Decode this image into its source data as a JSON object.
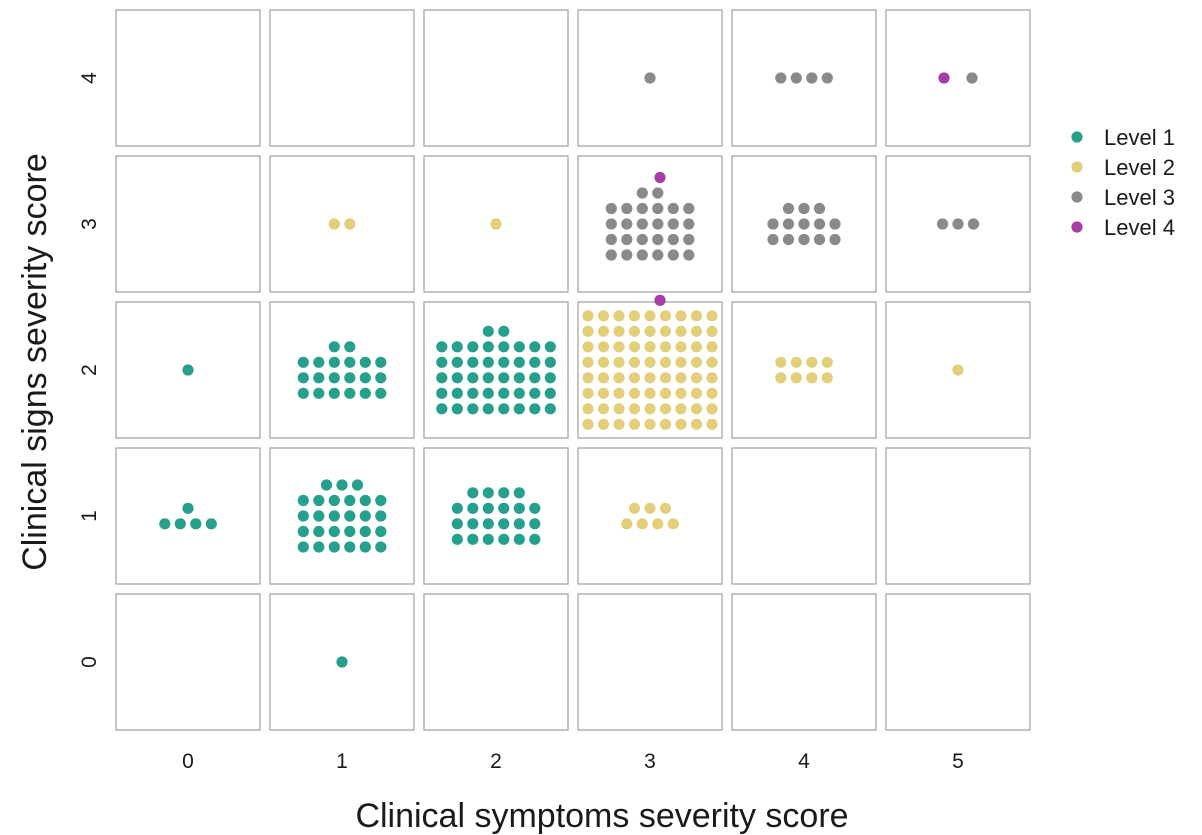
{
  "chart_data": {
    "type": "scatter",
    "title": "",
    "xlabel": "Clinical symptoms severity score",
    "ylabel": "Clinical signs severity score",
    "x_ticks": [
      "0",
      "1",
      "2",
      "3",
      "4",
      "5"
    ],
    "y_ticks": [
      "0",
      "1",
      "2",
      "3",
      "4"
    ],
    "legend_position": "right",
    "series": [
      {
        "name": "Level 1",
        "color": "#26a08c"
      },
      {
        "name": "Level 2",
        "color": "#e3cf7a"
      },
      {
        "name": "Level 3",
        "color": "#8a8a8a"
      },
      {
        "name": "Level 4",
        "color": "#a63ea6"
      }
    ],
    "cells": [
      {
        "x": 0,
        "y": 1,
        "counts": {
          "Level 1": 5
        }
      },
      {
        "x": 0,
        "y": 2,
        "counts": {
          "Level 1": 1
        }
      },
      {
        "x": 1,
        "y": 0,
        "counts": {
          "Level 1": 1
        }
      },
      {
        "x": 1,
        "y": 1,
        "counts": {
          "Level 1": 27
        }
      },
      {
        "x": 1,
        "y": 2,
        "counts": {
          "Level 1": 20
        }
      },
      {
        "x": 1,
        "y": 3,
        "counts": {
          "Level 2": 2
        }
      },
      {
        "x": 2,
        "y": 1,
        "counts": {
          "Level 1": 22
        }
      },
      {
        "x": 2,
        "y": 2,
        "counts": {
          "Level 1": 42
        }
      },
      {
        "x": 2,
        "y": 3,
        "counts": {
          "Level 2": 1
        }
      },
      {
        "x": 3,
        "y": 1,
        "counts": {
          "Level 2": 7
        }
      },
      {
        "x": 3,
        "y": 2,
        "counts": {
          "Level 2": 72,
          "Level 4": 1
        }
      },
      {
        "x": 3,
        "y": 3,
        "counts": {
          "Level 3": 26,
          "Level 4": 1
        }
      },
      {
        "x": 3,
        "y": 4,
        "counts": {
          "Level 3": 1
        }
      },
      {
        "x": 4,
        "y": 2,
        "counts": {
          "Level 2": 8
        }
      },
      {
        "x": 4,
        "y": 3,
        "counts": {
          "Level 3": 13
        }
      },
      {
        "x": 4,
        "y": 4,
        "counts": {
          "Level 3": 4
        }
      },
      {
        "x": 5,
        "y": 2,
        "counts": {
          "Level 2": 1
        }
      },
      {
        "x": 5,
        "y": 3,
        "counts": {
          "Level 3": 3
        }
      },
      {
        "x": 5,
        "y": 4,
        "counts": {
          "Level 3": 1,
          "Level 4": 1
        }
      }
    ]
  }
}
